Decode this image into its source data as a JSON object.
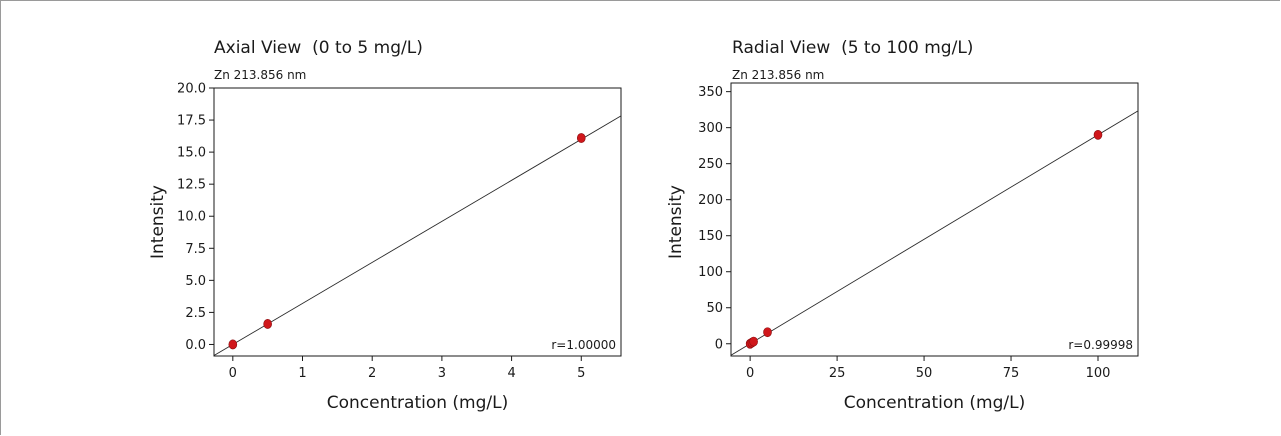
{
  "chart_data": [
    {
      "type": "scatter",
      "title": "Axial View  (0 to 5 mg/L)",
      "subtitle": "Zn 213.856 nm",
      "xlabel": "Concentration (mg/L)",
      "ylabel": "Intensity",
      "xlim": [
        -0.27,
        5.57
      ],
      "ylim": [
        -0.9,
        20.0
      ],
      "xticks": [
        0,
        1,
        2,
        3,
        4,
        5
      ],
      "xtick_labels": [
        "0",
        "1",
        "2",
        "3",
        "4",
        "5"
      ],
      "yticks": [
        0,
        2.5,
        5,
        7.5,
        10,
        12.5,
        15,
        17.5,
        20
      ],
      "ytick_labels": [
        "0.0",
        "2.5",
        "5.0",
        "7.5",
        "10.0",
        "12.5",
        "15.0",
        "17.5",
        "20.0"
      ],
      "series": [
        {
          "x": [
            0,
            0.5,
            5
          ],
          "y": [
            0.0,
            1.6,
            16.1
          ]
        }
      ],
      "fit": {
        "slope": 3.2,
        "intercept": 0.0
      },
      "annotation": "r=1.00000",
      "marker_color": "#d0171b"
    },
    {
      "type": "scatter",
      "title": "Radial View  (5 to 100 mg/L)",
      "subtitle": "Zn 213.856 nm",
      "xlabel": "Concentration (mg/L)",
      "ylabel": "Intensity",
      "xlim": [
        -5.5,
        111.5
      ],
      "ylim": [
        -17,
        362
      ],
      "xticks": [
        0,
        25,
        50,
        75,
        100
      ],
      "xtick_labels": [
        "0",
        "25",
        "50",
        "75",
        "100"
      ],
      "yticks": [
        0,
        50,
        100,
        150,
        200,
        250,
        300,
        350
      ],
      "ytick_labels": [
        "0",
        "50",
        "100",
        "150",
        "200",
        "250",
        "300",
        "350"
      ],
      "series": [
        {
          "x": [
            0,
            0.5,
            1,
            5,
            100
          ],
          "y": [
            0,
            1.5,
            3,
            16,
            290
          ]
        }
      ],
      "fit": {
        "slope": 2.9,
        "intercept": 0.0
      },
      "annotation": "r=0.99998",
      "marker_color": "#d0171b"
    }
  ]
}
